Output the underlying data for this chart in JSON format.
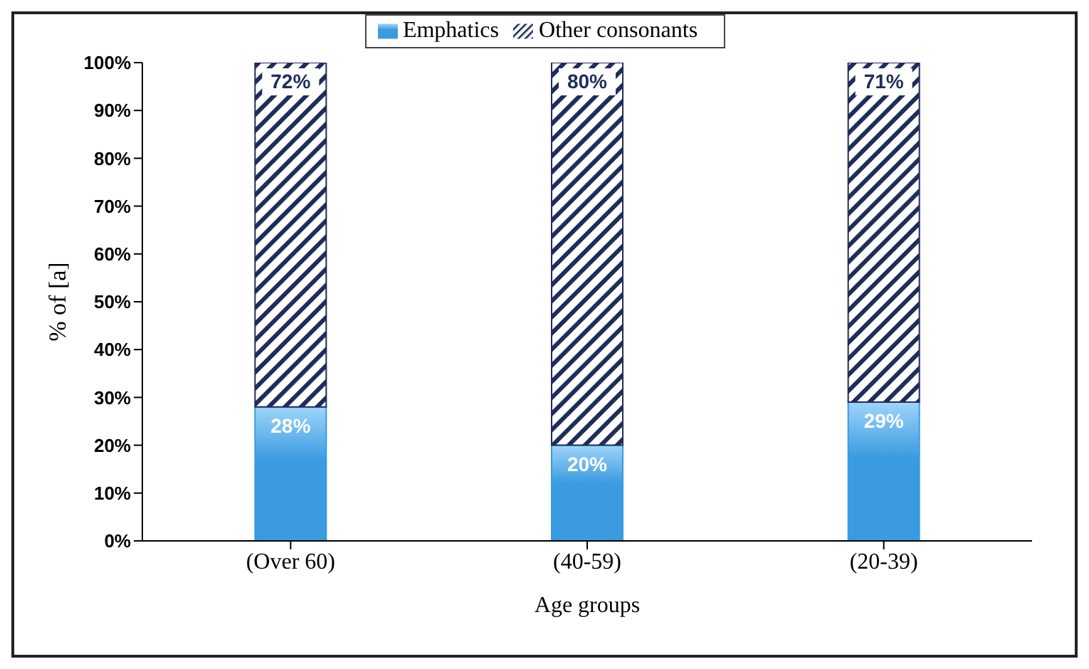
{
  "chart_data": {
    "type": "bar",
    "stacked": true,
    "xlabel": "Age groups",
    "ylabel": "% of [a]",
    "categories": [
      "(Over 60)",
      "(40-59)",
      "(20-39)"
    ],
    "series": [
      {
        "name": "Emphatics",
        "color": "#3a9be0",
        "values": [
          28,
          20,
          29
        ]
      },
      {
        "name": "Other consonants",
        "color": "#1f2d5a",
        "values": [
          72,
          80,
          71
        ]
      }
    ],
    "ylim": [
      0,
      100
    ],
    "yticks": [
      {
        "value": 0,
        "label": "0%"
      },
      {
        "value": 10,
        "label": "10%"
      },
      {
        "value": 20,
        "label": "20%"
      },
      {
        "value": 30,
        "label": "30%"
      },
      {
        "value": 40,
        "label": "40%"
      },
      {
        "value": 50,
        "label": "50%"
      },
      {
        "value": 60,
        "label": "60%"
      },
      {
        "value": 70,
        "label": "70%"
      },
      {
        "value": 80,
        "label": "80%"
      },
      {
        "value": 90,
        "label": "90%"
      },
      {
        "value": 100,
        "label": "100%"
      }
    ],
    "value_labels": [
      [
        "28%",
        "20%",
        "29%"
      ],
      [
        "72%",
        "80%",
        "71%"
      ]
    ],
    "legend": "top",
    "grid": false
  }
}
